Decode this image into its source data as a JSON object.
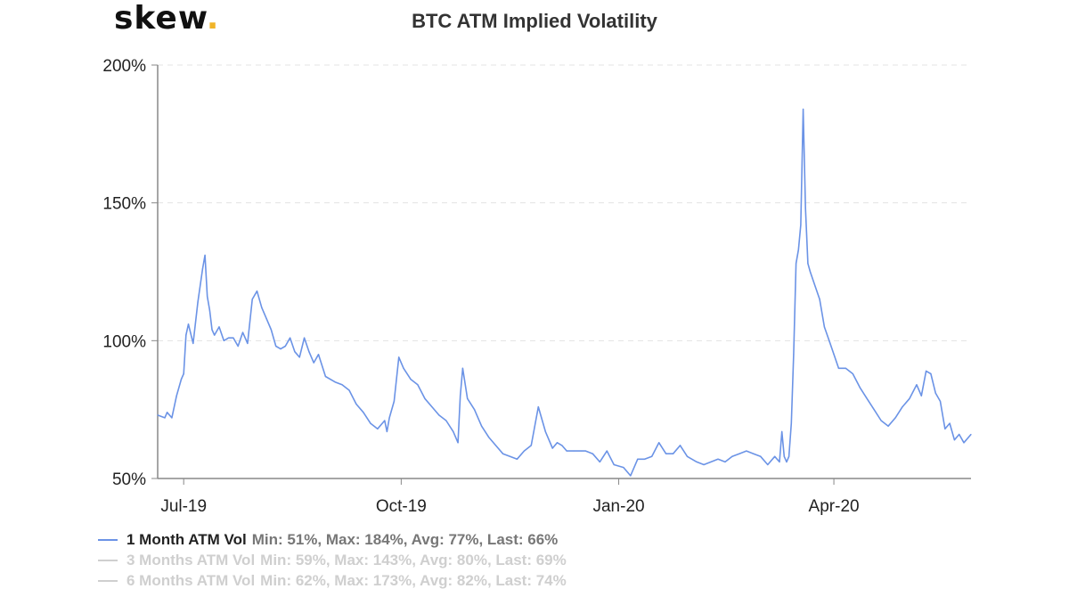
{
  "logo": {
    "text": "skew",
    "dot": "."
  },
  "colors": {
    "series": "#6b93e6",
    "inactive": "#cfcfcf",
    "grid": "#e3e3e3",
    "axis": "#888888",
    "accent": "#f0b429"
  },
  "chart_data": {
    "type": "line",
    "title": "BTC ATM Implied Volatility",
    "xlabel": "",
    "ylabel": "",
    "ylim": [
      50,
      200
    ],
    "y_ticks": [
      50,
      100,
      150,
      200
    ],
    "y_tick_labels": [
      "50%",
      "100%",
      "150%",
      "200%"
    ],
    "x_range": [
      "2019-06-20",
      "2020-05-29"
    ],
    "x_ticks": [
      "2019-07-01",
      "2019-10-01",
      "2020-01-01",
      "2020-04-01"
    ],
    "x_tick_labels": [
      "Jul-19",
      "Oct-19",
      "Jan-20",
      "Apr-20"
    ],
    "grid": true,
    "legend_position": "bottom-left",
    "series": [
      {
        "name": "1 Month ATM Vol",
        "stats": "Min: 51%, Max: 184%, Avg: 77%, Last: 66%",
        "visible": true,
        "x": [
          "2019-06-20",
          "2019-06-23",
          "2019-06-24",
          "2019-06-26",
          "2019-06-28",
          "2019-06-30",
          "2019-07-01",
          "2019-07-02",
          "2019-07-03",
          "2019-07-05",
          "2019-07-07",
          "2019-07-09",
          "2019-07-10",
          "2019-07-11",
          "2019-07-12",
          "2019-07-13",
          "2019-07-14",
          "2019-07-16",
          "2019-07-18",
          "2019-07-20",
          "2019-07-22",
          "2019-07-24",
          "2019-07-26",
          "2019-07-28",
          "2019-07-30",
          "2019-08-01",
          "2019-08-03",
          "2019-08-05",
          "2019-08-07",
          "2019-08-09",
          "2019-08-11",
          "2019-08-13",
          "2019-08-15",
          "2019-08-17",
          "2019-08-19",
          "2019-08-21",
          "2019-08-23",
          "2019-08-25",
          "2019-08-27",
          "2019-08-30",
          "2019-09-03",
          "2019-09-06",
          "2019-09-09",
          "2019-09-12",
          "2019-09-15",
          "2019-09-18",
          "2019-09-21",
          "2019-09-24",
          "2019-09-25",
          "2019-09-26",
          "2019-09-28",
          "2019-09-30",
          "2019-10-02",
          "2019-10-05",
          "2019-10-08",
          "2019-10-11",
          "2019-10-14",
          "2019-10-17",
          "2019-10-20",
          "2019-10-23",
          "2019-10-25",
          "2019-10-26",
          "2019-10-27",
          "2019-10-29",
          "2019-11-01",
          "2019-11-04",
          "2019-11-07",
          "2019-11-10",
          "2019-11-13",
          "2019-11-16",
          "2019-11-19",
          "2019-11-22",
          "2019-11-25",
          "2019-11-28",
          "2019-12-01",
          "2019-12-04",
          "2019-12-06",
          "2019-12-08",
          "2019-12-10",
          "2019-12-13",
          "2019-12-16",
          "2019-12-18",
          "2019-12-21",
          "2019-12-24",
          "2019-12-27",
          "2019-12-30",
          "2020-01-03",
          "2020-01-06",
          "2020-01-09",
          "2020-01-12",
          "2020-01-15",
          "2020-01-18",
          "2020-01-21",
          "2020-01-24",
          "2020-01-27",
          "2020-01-30",
          "2020-02-03",
          "2020-02-06",
          "2020-02-09",
          "2020-02-12",
          "2020-02-15",
          "2020-02-18",
          "2020-02-21",
          "2020-02-24",
          "2020-02-27",
          "2020-03-01",
          "2020-03-04",
          "2020-03-07",
          "2020-03-09",
          "2020-03-10",
          "2020-03-11",
          "2020-03-12",
          "2020-03-13",
          "2020-03-14",
          "2020-03-15",
          "2020-03-16",
          "2020-03-17",
          "2020-03-18",
          "2020-03-19",
          "2020-03-20",
          "2020-03-21",
          "2020-03-22",
          "2020-03-24",
          "2020-03-26",
          "2020-03-28",
          "2020-03-30",
          "2020-04-01",
          "2020-04-03",
          "2020-04-06",
          "2020-04-09",
          "2020-04-12",
          "2020-04-15",
          "2020-04-18",
          "2020-04-21",
          "2020-04-24",
          "2020-04-27",
          "2020-04-30",
          "2020-05-03",
          "2020-05-06",
          "2020-05-08",
          "2020-05-10",
          "2020-05-12",
          "2020-05-14",
          "2020-05-16",
          "2020-05-18",
          "2020-05-20",
          "2020-05-22",
          "2020-05-24",
          "2020-05-26",
          "2020-05-29"
        ],
        "values": [
          73,
          72,
          74,
          72,
          80,
          86,
          88,
          102,
          106,
          99,
          114,
          126,
          131,
          116,
          111,
          104,
          102,
          105,
          100,
          101,
          101,
          98,
          103,
          99,
          115,
          118,
          112,
          108,
          104,
          98,
          97,
          98,
          101,
          96,
          94,
          101,
          96,
          92,
          95,
          87,
          85,
          84,
          82,
          77,
          74,
          70,
          68,
          71,
          67,
          72,
          78,
          94,
          90,
          86,
          84,
          79,
          76,
          73,
          71,
          67,
          63,
          80,
          90,
          79,
          75,
          69,
          65,
          62,
          59,
          58,
          57,
          60,
          62,
          76,
          67,
          61,
          63,
          62,
          60,
          60,
          60,
          60,
          59,
          56,
          60,
          55,
          54,
          51,
          57,
          57,
          58,
          63,
          59,
          59,
          62,
          58,
          56,
          55,
          56,
          57,
          56,
          58,
          59,
          60,
          59,
          58,
          55,
          58,
          56,
          67,
          58,
          56,
          58,
          70,
          95,
          128,
          133,
          142,
          184,
          148,
          128,
          125,
          120,
          115,
          105,
          100,
          95,
          90,
          90,
          88,
          83,
          79,
          75,
          71,
          69,
          72,
          76,
          79,
          84,
          80,
          89,
          88,
          81,
          78,
          68,
          70,
          64,
          66,
          63,
          66
        ]
      },
      {
        "name": "3 Months ATM Vol",
        "stats": "Min: 59%, Max: 143%, Avg: 80%, Last: 69%",
        "visible": false
      },
      {
        "name": "6 Months ATM Vol",
        "stats": "Min: 62%, Max: 173%, Avg: 82%, Last: 74%",
        "visible": false
      }
    ]
  }
}
